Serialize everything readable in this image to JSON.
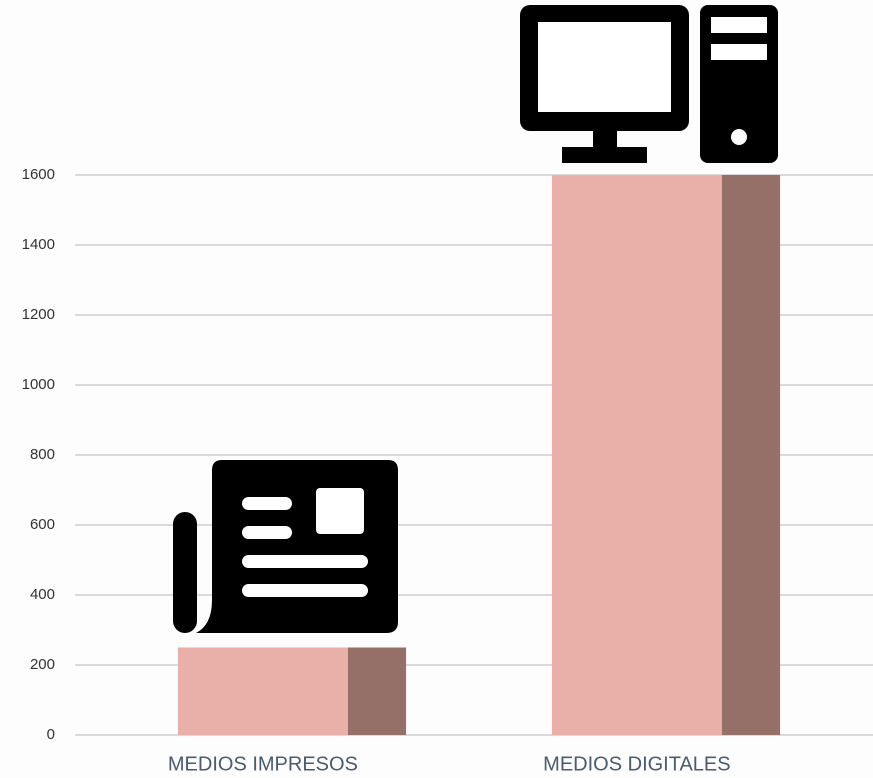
{
  "chart_data": {
    "type": "bar",
    "categories": [
      "MEDIOS IMPRESOS",
      "MEDIOS DIGITALES"
    ],
    "values": [
      250,
      1600
    ],
    "color": "#e8b0a8",
    "side_color": "#957068",
    "ylim": [
      0,
      1600
    ],
    "yticks": [
      0,
      200,
      400,
      600,
      800,
      1000,
      1200,
      1400,
      1600
    ],
    "grid": true
  }
}
